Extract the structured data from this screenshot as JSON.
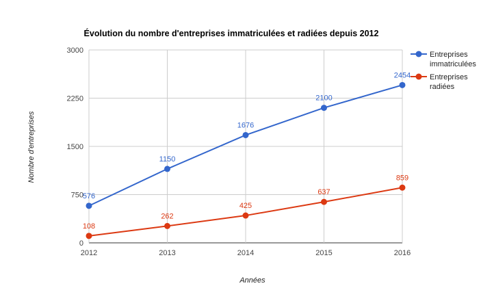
{
  "chart_data": {
    "type": "line",
    "title": "Évolution du nombre d'entreprises immatriculées et radiées depuis 2012",
    "xlabel": "Années",
    "ylabel": "Nombre d'entreprises",
    "categories": [
      "2012",
      "2013",
      "2014",
      "2015",
      "2016"
    ],
    "ylim": [
      0,
      3000
    ],
    "yticks": [
      0,
      750,
      1500,
      2250,
      3000
    ],
    "grid": true,
    "legend_position": "right",
    "series": [
      {
        "name_lines": [
          "Entreprises",
          "immatriculées"
        ],
        "color": "#3366cc",
        "values": [
          576,
          1150,
          1676,
          2100,
          2454
        ],
        "labels": [
          "576",
          "1150",
          "1676",
          "2100",
          "2454"
        ]
      },
      {
        "name_lines": [
          "Entreprises",
          "radiées"
        ],
        "color": "#dc3912",
        "values": [
          108,
          262,
          425,
          637,
          859
        ],
        "labels": [
          "108",
          "262",
          "425",
          "637",
          "859"
        ]
      }
    ]
  }
}
